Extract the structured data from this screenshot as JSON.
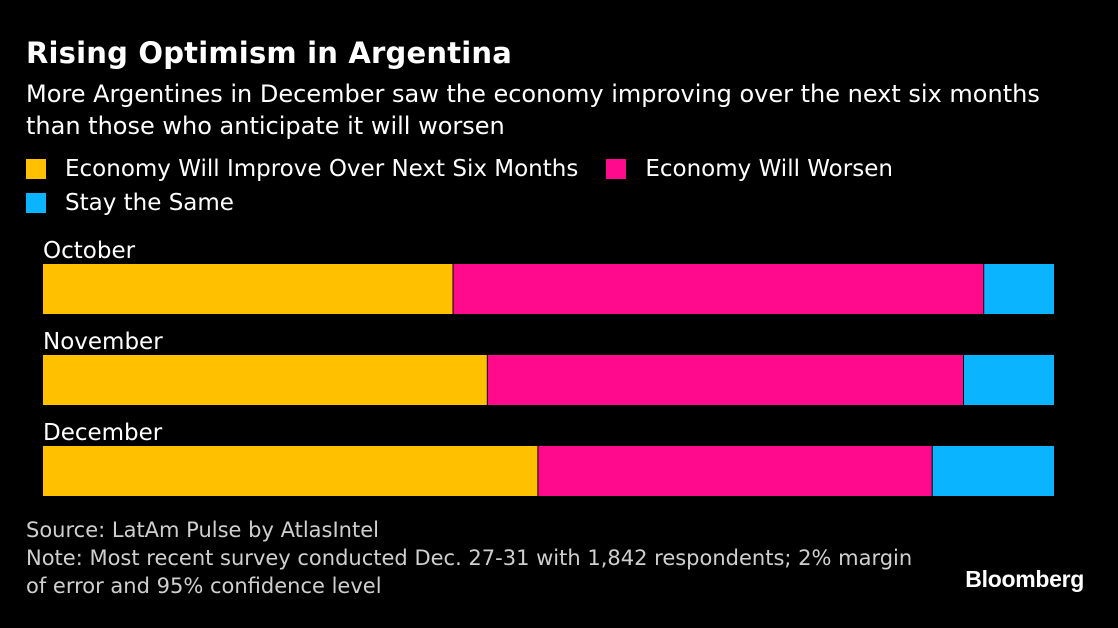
{
  "header": {
    "title": "Rising Optimism in Argentina",
    "subtitle": "More Argentines in December saw the economy improving over the next six months than those who anticipate it will worsen"
  },
  "legend": [
    {
      "label": "Economy Will Improve Over Next Six Months",
      "color": "#FFC000"
    },
    {
      "label": "Economy Will Worsen",
      "color": "#FF0A8C"
    },
    {
      "label": "Stay the Same",
      "color": "#0AB4FF"
    }
  ],
  "chart_data": {
    "type": "bar",
    "orientation": "horizontal",
    "stacked": true,
    "normalized_percent": true,
    "categories": [
      "October",
      "November",
      "December"
    ],
    "series": [
      {
        "name": "Economy Will Improve Over Next Six Months",
        "color": "#FFC000",
        "values": [
          40.6,
          44.0,
          49.0
        ]
      },
      {
        "name": "Economy Will Worsen",
        "color": "#FF0A8C",
        "values": [
          52.5,
          47.1,
          39.0
        ]
      },
      {
        "name": "Stay the Same",
        "color": "#0AB4FF",
        "values": [
          6.9,
          8.9,
          12.0
        ]
      }
    ],
    "xlim": [
      0,
      100
    ],
    "grid": false,
    "legend_position": "top-left"
  },
  "footer": {
    "source": "Source: LatAm Pulse by AtlasIntel",
    "note": "Note: Most recent survey conducted Dec. 27-31 with 1,842 respondents; 2% margin of error and 95% confidence level",
    "brand": "Bloomberg"
  }
}
